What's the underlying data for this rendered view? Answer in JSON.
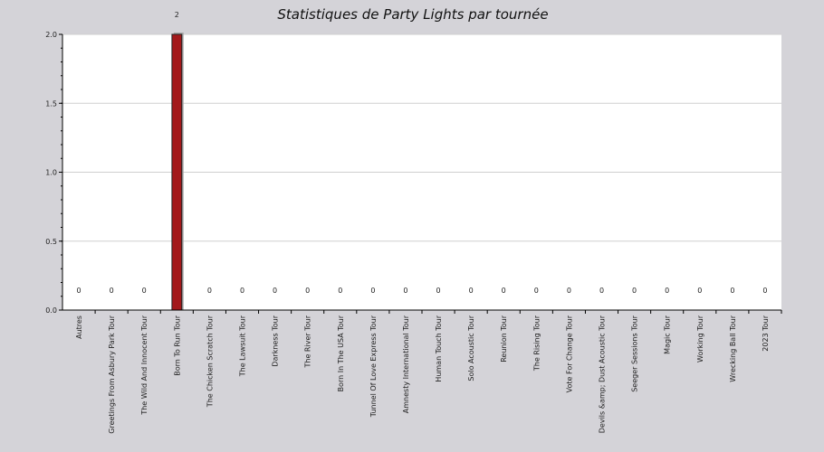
{
  "chart_data": {
    "type": "bar",
    "title": "Statistiques de Party Lights par tournée",
    "xlabel": "",
    "ylabel": "",
    "ylim": [
      0,
      2.0
    ],
    "yticks": [
      0.0,
      0.5,
      1.0,
      1.5,
      2.0
    ],
    "ytick_labels": [
      "0.0",
      "0.5",
      "1.0",
      "1.5",
      "2.0"
    ],
    "grid": true,
    "categories": [
      "Autres",
      "Greetings From Asbury Park Tour",
      "The Wild And Innocent Tour",
      "Born To Run Tour",
      "The Chicken Scratch Tour",
      "The Lawsuit Tour",
      "Darkness Tour",
      "The River Tour",
      "Born In The USA Tour",
      "Tunnel Of Love Express Tour",
      "Amnesty International Tour",
      "Human Touch Tour",
      "Solo Acoustic Tour",
      "Reunion Tour",
      "The Rising Tour",
      "Vote For Change Tour",
      "Devils &amp; Dust Acoustic Tour",
      "Seeger Sessions Tour",
      "Magic Tour",
      "Working Tour",
      "Wrecking Ball Tour",
      "2023 Tour"
    ],
    "values": [
      0,
      0,
      0,
      2,
      0,
      0,
      0,
      0,
      0,
      0,
      0,
      0,
      0,
      0,
      0,
      0,
      0,
      0,
      0,
      0,
      0,
      0
    ],
    "data_labels": [
      "0",
      "0",
      "0",
      "2",
      "0",
      "0",
      "0",
      "0",
      "0",
      "0",
      "0",
      "0",
      "0",
      "0",
      "0",
      "0",
      "0",
      "0",
      "0",
      "0",
      "0",
      "0"
    ],
    "colors": {
      "bar": "#a3191b",
      "bar_shadow": "#a6a6a6",
      "plot_bg": "#ffffff",
      "page_bg": "#d4d3d8",
      "grid": "#cfcfcf"
    }
  }
}
